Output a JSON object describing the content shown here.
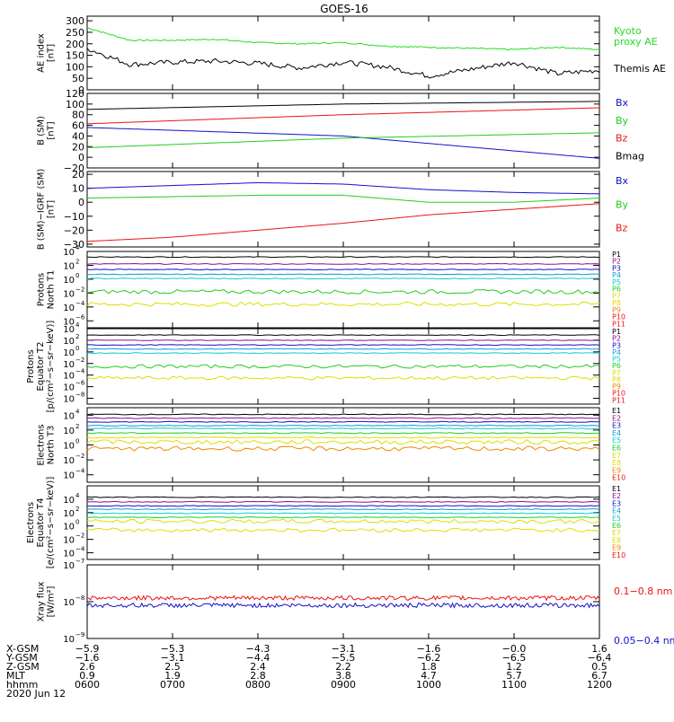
{
  "title": "GOES-16",
  "date": "2020 Jun 12",
  "colors": {
    "black": "#000000",
    "red": "#ee1111",
    "green": "#11cc11",
    "blue": "#1111cc",
    "lightgreen": "#33dd33",
    "cyan": "#11cccc",
    "yellow": "#dddd00",
    "orange": "#ee8800",
    "purple": "#881188",
    "navy": "#111188"
  },
  "chart_data": [
    {
      "id": "ae",
      "type": "line",
      "ylabel_lines": [
        "AE index",
        "[nT]"
      ],
      "yticks": [
        "300",
        "250",
        "200",
        "150",
        "100",
        "50",
        "0"
      ],
      "ylim": [
        0,
        320
      ],
      "series": [
        {
          "name": "Kyoto proxy AE",
          "legend_lines": [
            "Kyoto",
            "proxy AE"
          ],
          "color": "#22dd22",
          "x": [
            "0600",
            "0630",
            "0700",
            "0730",
            "0800",
            "0830",
            "0900",
            "0930",
            "1000",
            "1030",
            "1100",
            "1130",
            "1200"
          ],
          "values": [
            270,
            215,
            215,
            220,
            205,
            200,
            205,
            190,
            185,
            180,
            175,
            185,
            175
          ]
        },
        {
          "name": "Themis AE",
          "legend_lines": [
            "Themis AE"
          ],
          "color": "#000000",
          "x": [
            "0600",
            "0630",
            "0700",
            "0730",
            "0800",
            "0830",
            "0900",
            "0930",
            "1000",
            "1030",
            "1100",
            "1130",
            "1200"
          ],
          "values": [
            180,
            110,
            120,
            125,
            115,
            95,
            120,
            100,
            60,
            90,
            120,
            70,
            85
          ]
        }
      ]
    },
    {
      "id": "bsm",
      "type": "line",
      "ylabel_lines": [
        "B (SM)",
        "[nT]"
      ],
      "yticks": [
        "120",
        "100",
        "80",
        "60",
        "40",
        "20",
        "0",
        "−20"
      ],
      "ylim": [
        -20,
        120
      ],
      "series": [
        {
          "name": "Bx",
          "color": "#1111cc",
          "x": [
            "0600",
            "0900",
            "1200"
          ],
          "values": [
            56,
            40,
            -2
          ]
        },
        {
          "name": "By",
          "color": "#22cc22",
          "x": [
            "0600",
            "0900",
            "1200"
          ],
          "values": [
            18,
            36,
            46
          ]
        },
        {
          "name": "Bz",
          "color": "#ee1111",
          "x": [
            "0600",
            "0900",
            "1200"
          ],
          "values": [
            63,
            80,
            93
          ]
        },
        {
          "name": "Bmag",
          "color": "#000000",
          "x": [
            "0600",
            "0900",
            "1200"
          ],
          "values": [
            90,
            100,
            105
          ]
        }
      ]
    },
    {
      "id": "bigrf",
      "type": "line",
      "ylabel_lines": [
        "B (SM)−IGRF (SM)",
        "[nT]"
      ],
      "yticks": [
        "20",
        "10",
        "0",
        "−10",
        "−20",
        "−30"
      ],
      "ylim": [
        -32,
        22
      ],
      "series": [
        {
          "name": "Bx",
          "color": "#1111cc",
          "x": [
            "0600",
            "0700",
            "0800",
            "0900",
            "1000",
            "1100",
            "1200"
          ],
          "values": [
            10,
            12,
            14,
            13,
            9,
            7,
            6
          ]
        },
        {
          "name": "By",
          "color": "#22cc22",
          "x": [
            "0600",
            "0700",
            "0800",
            "0900",
            "1000",
            "1100",
            "1200"
          ],
          "values": [
            3,
            4,
            5,
            5,
            0,
            0,
            3
          ]
        },
        {
          "name": "Bz",
          "color": "#ee1111",
          "x": [
            "0600",
            "0700",
            "0800",
            "0900",
            "1000",
            "1100",
            "1200"
          ],
          "values": [
            -28,
            -25,
            -20,
            -15,
            -9,
            -5,
            -1
          ]
        }
      ]
    },
    {
      "id": "pn",
      "type": "line",
      "scale": "log",
      "ylabel_lines": [
        "Protons",
        "North T1"
      ],
      "yticks_exp": [
        "4",
        "2",
        "0",
        "−2",
        "−4",
        "−6"
      ],
      "ylim_log10": [
        -7,
        4
      ],
      "legend": [
        "P1",
        "P2",
        "P3",
        "P4",
        "P5",
        "P6",
        "P7",
        "P8",
        "P9",
        "P10",
        "P11"
      ],
      "legend_colors": [
        "#000000",
        "#881188",
        "#1111cc",
        "#1199cc",
        "#11cccc",
        "#22cc22",
        "#dddd00",
        "#dddd00",
        "#ee8800",
        "#ee1111",
        "#ee1111"
      ],
      "levels_log10": [
        3.2,
        2.2,
        1.4,
        0.7,
        0.1,
        -1.8,
        -3.6
      ]
    },
    {
      "id": "pe",
      "type": "line",
      "scale": "log",
      "ylabel_lines": [
        "Protons",
        "Equator T2",
        "[p/(cm²−s−sr−keV)]"
      ],
      "yticks_exp": [
        "4",
        "2",
        "0",
        "−2",
        "−4",
        "−6",
        "−8"
      ],
      "ylim_log10": [
        -9,
        4
      ],
      "legend": [
        "P1",
        "P2",
        "P3",
        "P4",
        "P5",
        "P6",
        "P7",
        "P8",
        "P9",
        "P10",
        "P11"
      ],
      "legend_colors": [
        "#000000",
        "#881188",
        "#1111cc",
        "#1199cc",
        "#11cccc",
        "#22cc22",
        "#dddd00",
        "#dddd00",
        "#ee8800",
        "#ee1111",
        "#ee1111"
      ],
      "levels_log10": [
        2.9,
        2.0,
        1.2,
        0.5,
        -0.2,
        -2.5,
        -4.5
      ]
    },
    {
      "id": "en",
      "type": "line",
      "scale": "log",
      "ylabel_lines": [
        "Electrons",
        "North T3"
      ],
      "yticks_exp": [
        "4",
        "2",
        "0",
        "−2",
        "−4"
      ],
      "ylim_log10": [
        -5,
        5
      ],
      "legend": [
        "E1",
        "E2",
        "E3",
        "E4",
        "E5",
        "E6",
        "E7",
        "E8",
        "E9",
        "E10"
      ],
      "legend_colors": [
        "#000000",
        "#881188",
        "#1111cc",
        "#1199cc",
        "#11cccc",
        "#22cc22",
        "#dddd00",
        "#dddd00",
        "#ee8800",
        "#ee1111"
      ],
      "levels_log10": [
        4.1,
        3.6,
        3.1,
        2.6,
        2.2,
        1.6,
        1.0,
        0.4,
        -0.5
      ]
    },
    {
      "id": "ee",
      "type": "line",
      "scale": "log",
      "ylabel_lines": [
        "Electrons",
        "Equator T4",
        "[e/(cm²−s−sr−keV)]"
      ],
      "yticks_exp": [
        "4",
        "2",
        "0",
        "−2",
        "−4"
      ],
      "ylim_log10": [
        -5,
        6
      ],
      "legend": [
        "E1",
        "E2",
        "E3",
        "E4",
        "E5",
        "E6",
        "E7",
        "E8",
        "E9",
        "E10"
      ],
      "legend_colors": [
        "#000000",
        "#881188",
        "#1111cc",
        "#1199cc",
        "#11cccc",
        "#22cc22",
        "#dddd00",
        "#dddd00",
        "#ee8800",
        "#ee1111"
      ],
      "levels_log10": [
        4.3,
        3.6,
        3.0,
        2.5,
        1.9,
        1.3,
        0.7,
        -0.6
      ]
    },
    {
      "id": "xray",
      "type": "line",
      "scale": "log",
      "ylabel_lines": [
        "Xray flux",
        "[W/m²]"
      ],
      "yticks_exp": [
        "−7",
        "−8",
        "−9"
      ],
      "ylim_log10": [
        -9,
        -7
      ],
      "series": [
        {
          "name": "0.1−0.8 nm",
          "color": "#ee1111",
          "value_log10": -7.9
        },
        {
          "name": "0.05−0.4 nm",
          "color": "#1111cc",
          "value_log10": -8.1
        }
      ]
    }
  ],
  "xaxis": {
    "ticks": [
      "0600",
      "0700",
      "0800",
      "0900",
      "1000",
      "1100",
      "1200"
    ],
    "rows": [
      {
        "label": "X-GSM",
        "values": [
          "−5.9",
          "−5.3",
          "−4.3",
          "−3.1",
          "−1.6",
          "−0.0",
          "1.6"
        ]
      },
      {
        "label": "Y-GSM",
        "values": [
          "−1.6",
          "−3.1",
          "−4.4",
          "−5.5",
          "−6.2",
          "−6.5",
          "−6.4"
        ]
      },
      {
        "label": "Z-GSM",
        "values": [
          "2.6",
          "2.5",
          "2.4",
          "2.2",
          "1.8",
          "1.2",
          "0.5"
        ]
      },
      {
        "label": "MLT",
        "values": [
          "0.9",
          "1.9",
          "2.8",
          "3.8",
          "4.7",
          "5.7",
          "6.7"
        ]
      },
      {
        "label": "hhmm",
        "values": [
          "0600",
          "0700",
          "0800",
          "0900",
          "1000",
          "1100",
          "1200"
        ]
      }
    ]
  }
}
